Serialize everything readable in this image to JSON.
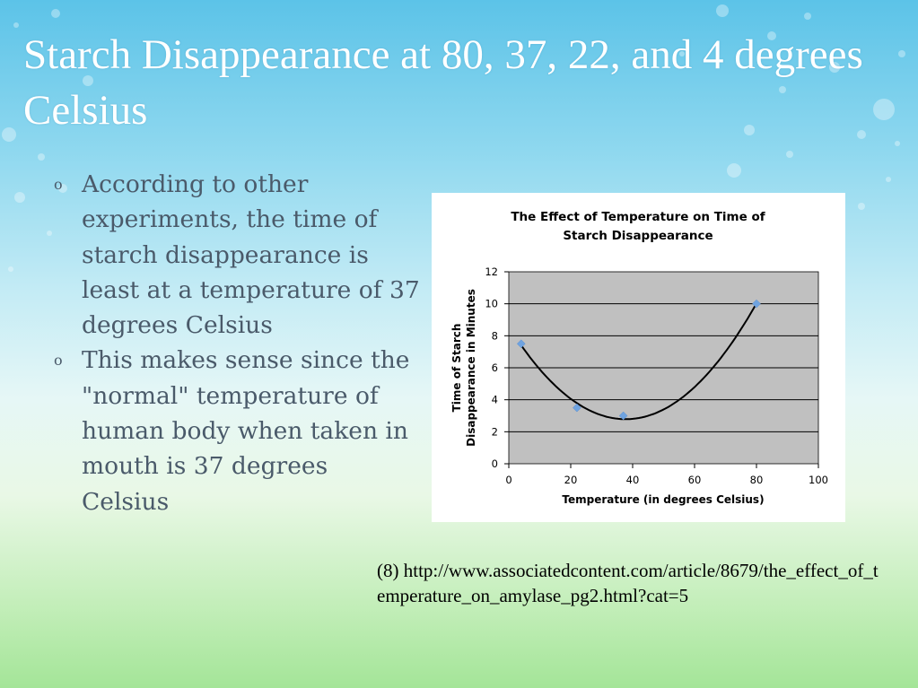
{
  "slide": {
    "title": "Starch Disappearance at 80, 37, 22, and 4 degrees Celsius",
    "bullets": [
      "According to other experiments, the time of starch disappearance is least at a temperature of 37 degrees Celsius",
      "This makes sense since the \"normal\" temperature of human body when taken in mouth is 37 degrees Celsius"
    ],
    "bullet_marker": "o",
    "source": "(8) http://www.associatedcontent.com/article/8679/the_effect_of_temperature_on_amylase_pg2.html?cat=5"
  },
  "chart_data": {
    "type": "scatter",
    "title_lines": [
      "The Effect of Temperature on Time of",
      "Starch Disappearance"
    ],
    "xlabel": "Temperature (in degrees Celsius)",
    "ylabel_lines": [
      "Time of Starch",
      "Disappearance in Minutes"
    ],
    "xlim": [
      0,
      100
    ],
    "ylim": [
      0,
      12
    ],
    "xticks": [
      0,
      20,
      40,
      60,
      80,
      100
    ],
    "yticks": [
      0,
      2,
      4,
      6,
      8,
      10,
      12
    ],
    "grid": "horizontal",
    "plot_background": "#c0c0c0",
    "marker_color": "#6fa3e0",
    "trendline": "polynomial",
    "points": [
      {
        "x": 4,
        "y": 7.5
      },
      {
        "x": 22,
        "y": 3.5
      },
      {
        "x": 37,
        "y": 3.0
      },
      {
        "x": 80,
        "y": 10.0
      }
    ]
  }
}
